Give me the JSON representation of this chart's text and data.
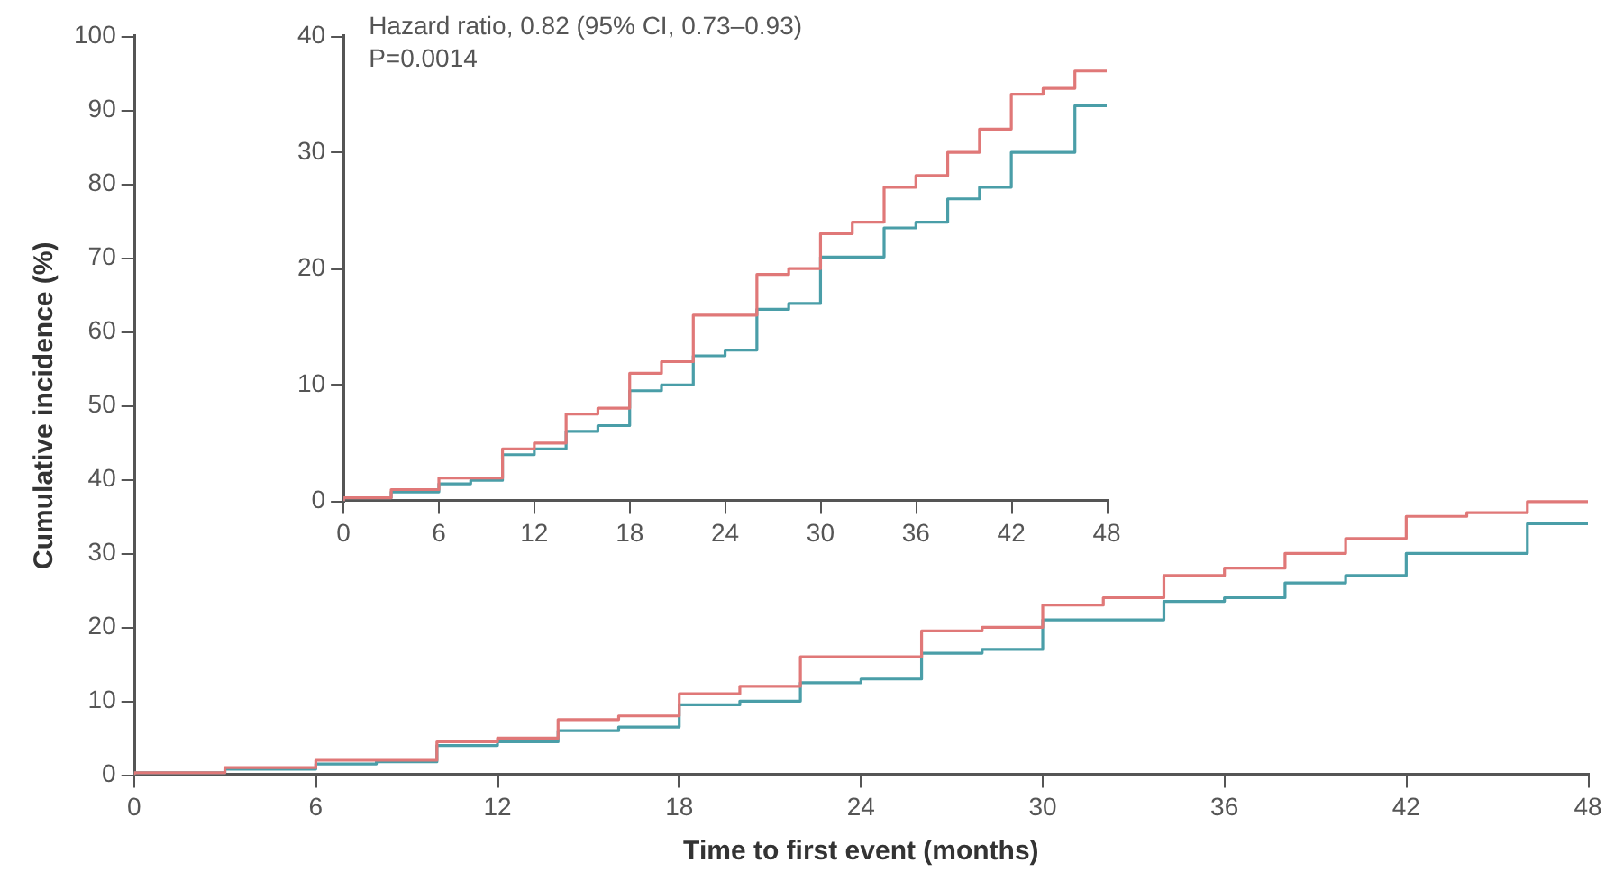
{
  "chart_data": [
    {
      "type": "step",
      "xlabel": "Time to first event (months)",
      "ylabel": "Cumulative incidence (%)",
      "x": [
        0,
        3,
        6,
        8,
        10,
        12,
        14,
        16,
        18,
        20,
        22,
        24,
        26,
        28,
        30,
        32,
        34,
        36,
        38,
        40,
        42,
        44,
        46,
        48
      ],
      "series": [
        {
          "color": "#e07878",
          "values": [
            0,
            0.3,
            1,
            2,
            2,
            4.5,
            5,
            7.5,
            8,
            11,
            12,
            16,
            16,
            19.5,
            20,
            23,
            24,
            27,
            28,
            30,
            32,
            35,
            35.5,
            37
          ]
        },
        {
          "color": "#4a9ea8",
          "values": [
            0,
            0.3,
            0.8,
            1.5,
            1.8,
            4,
            4.5,
            6,
            6.5,
            9.5,
            10,
            12.5,
            13,
            16.5,
            17,
            21,
            21,
            23.5,
            24,
            26,
            27,
            30,
            30,
            34
          ]
        }
      ],
      "xlim": [
        0,
        48
      ],
      "ylim": [
        0,
        100
      ],
      "xticks": [
        0,
        6,
        12,
        18,
        24,
        30,
        36,
        42,
        48
      ],
      "yticks": [
        0,
        10,
        20,
        30,
        40,
        50,
        60,
        70,
        80,
        90,
        100
      ]
    },
    {
      "type": "step",
      "annotations": [
        "Hazard ratio, 0.82 (95% CI, 0.73–0.93)",
        "P=0.0014"
      ],
      "x": [
        0,
        3,
        6,
        8,
        10,
        12,
        14,
        16,
        18,
        20,
        22,
        24,
        26,
        28,
        30,
        32,
        34,
        36,
        38,
        40,
        42,
        44,
        46,
        48
      ],
      "series": [
        {
          "color": "#e07878",
          "values": [
            0,
            0.3,
            1,
            2,
            2,
            4.5,
            5,
            7.5,
            8,
            11,
            12,
            16,
            16,
            19.5,
            20,
            23,
            24,
            27,
            28,
            30,
            32,
            35,
            35.5,
            37
          ]
        },
        {
          "color": "#4a9ea8",
          "values": [
            0,
            0.3,
            0.8,
            1.5,
            1.8,
            4,
            4.5,
            6,
            6.5,
            9.5,
            10,
            12.5,
            13,
            16.5,
            17,
            21,
            21,
            23.5,
            24,
            26,
            27,
            30,
            30,
            34
          ]
        }
      ],
      "xlim": [
        0,
        48
      ],
      "ylim": [
        0,
        40
      ],
      "xticks": [
        0,
        6,
        12,
        18,
        24,
        30,
        36,
        42,
        48
      ],
      "yticks": [
        0,
        10,
        20,
        30,
        40
      ]
    }
  ]
}
